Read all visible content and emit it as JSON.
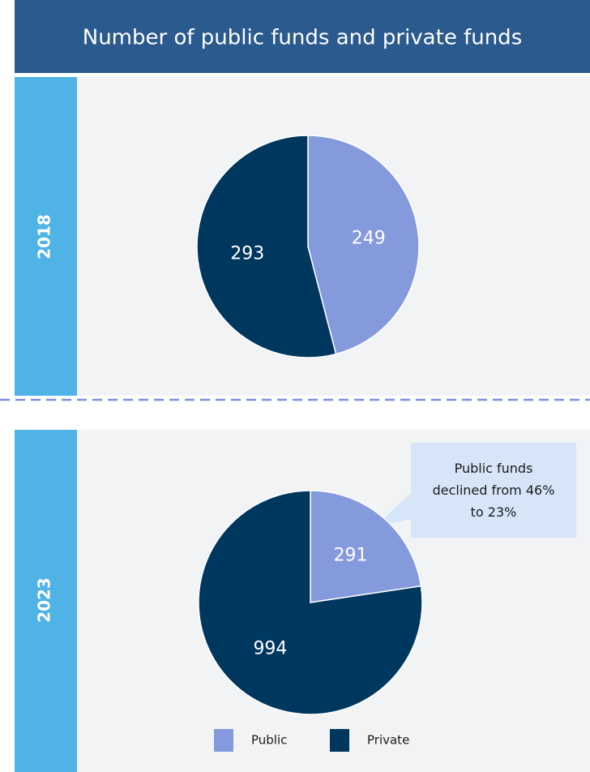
{
  "title": "Number of public funds and private funds",
  "chart_data": [
    {
      "type": "pie",
      "title": "2018",
      "categories": [
        "Public",
        "Private"
      ],
      "values": [
        249,
        293
      ],
      "colors": [
        "#8599dd",
        "#00375f"
      ]
    },
    {
      "type": "pie",
      "title": "2023",
      "categories": [
        "Public",
        "Private"
      ],
      "values": [
        291,
        994
      ],
      "colors": [
        "#8599dd",
        "#00375f"
      ],
      "annotation": "Public funds declined from 46% to 23%",
      "legend": "bottom"
    }
  ]
}
